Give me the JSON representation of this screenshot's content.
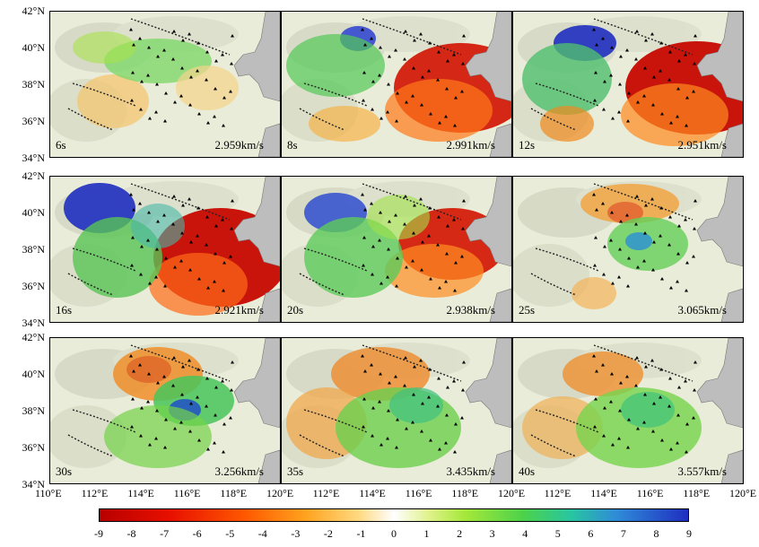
{
  "panels": [
    {
      "period": "6s",
      "velocity": "2.959km/s"
    },
    {
      "period": "8s",
      "velocity": "2.991km/s"
    },
    {
      "period": "12s",
      "velocity": "2.951km/s"
    },
    {
      "period": "16s",
      "velocity": "2.921km/s"
    },
    {
      "period": "20s",
      "velocity": "2.938km/s"
    },
    {
      "period": "25s",
      "velocity": "3.065km/s"
    },
    {
      "period": "30s",
      "velocity": "3.256km/s"
    },
    {
      "period": "35s",
      "velocity": "3.435km/s"
    },
    {
      "period": "40s",
      "velocity": "3.557km/s"
    }
  ],
  "latitude_labels": [
    "42°N",
    "40°N",
    "38°N",
    "36°N",
    "34°N"
  ],
  "longitude_labels": [
    "110°E",
    "112°E",
    "114°E",
    "116°E",
    "118°E",
    "120°E"
  ],
  "colorbar": {
    "ticks": [
      "-9",
      "-8",
      "-7",
      "-6",
      "-5",
      "-4",
      "-3",
      "-2",
      "-1",
      "0",
      "1",
      "2",
      "3",
      "4",
      "5",
      "6",
      "7",
      "8",
      "9"
    ]
  }
}
